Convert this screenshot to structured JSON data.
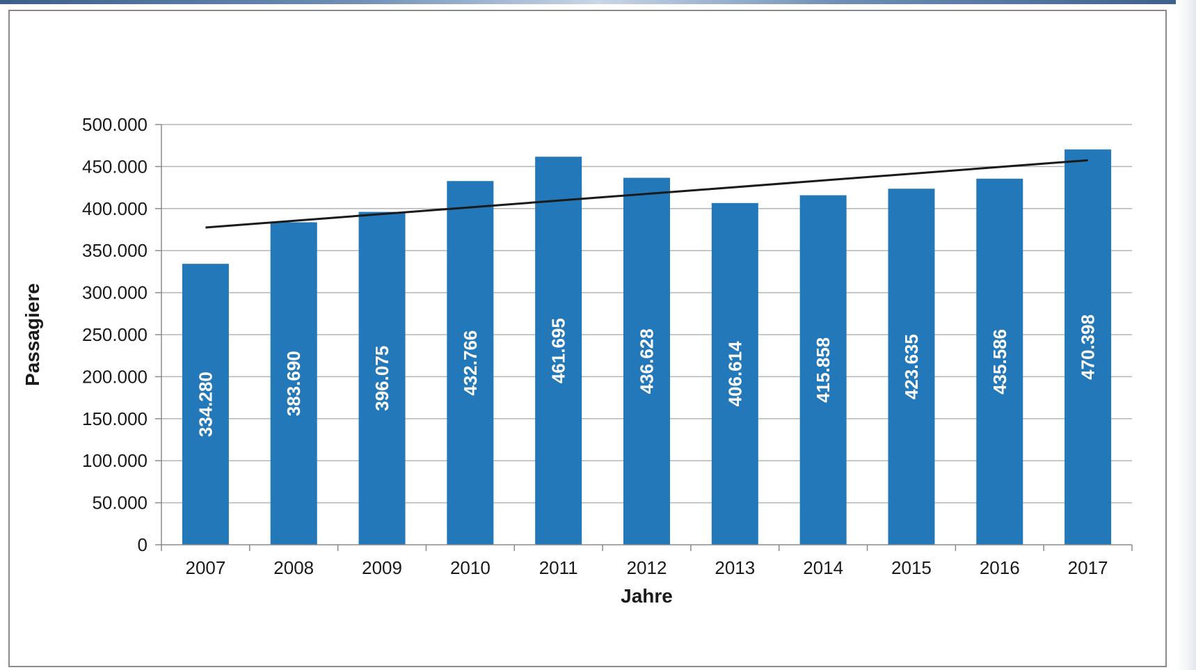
{
  "chart_data": {
    "type": "bar",
    "title": "",
    "xlabel": "Jahre",
    "ylabel": "Passagiere",
    "categories": [
      "2007",
      "2008",
      "2009",
      "2010",
      "2011",
      "2012",
      "2013",
      "2014",
      "2015",
      "2016",
      "2017"
    ],
    "values": [
      334280,
      383690,
      396075,
      432766,
      461695,
      436628,
      406614,
      415858,
      423635,
      435586,
      470398
    ],
    "value_labels": [
      "334.280",
      "383.690",
      "396.075",
      "432.766",
      "461.695",
      "436.628",
      "406.614",
      "415.858",
      "423.635",
      "435.586",
      "470.398"
    ],
    "ylim": [
      0,
      500000
    ],
    "yticks": [
      0,
      50000,
      100000,
      150000,
      200000,
      250000,
      300000,
      350000,
      400000,
      450000,
      500000
    ],
    "ytick_labels": [
      "0",
      "50.000",
      "100.000",
      "150.000",
      "200.000",
      "250.000",
      "300.000",
      "350.000",
      "400.000",
      "450.000",
      "500.000"
    ],
    "trendline": {
      "type": "linear",
      "start": 377500,
      "end": 457500
    },
    "grid": true,
    "legend": "none",
    "colors": {
      "bar": "#2278b8",
      "trend": "#1a1a1a",
      "grid": "#b5b5b5",
      "axis": "#8a8a8a"
    }
  }
}
